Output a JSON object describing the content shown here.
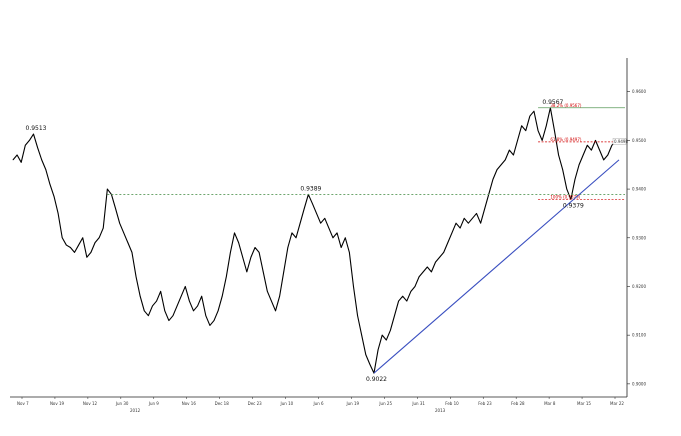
{
  "chart_data": {
    "type": "line",
    "title": "",
    "xlabel": "",
    "ylabel": "",
    "ylim": [
      0.8973,
      0.9661
    ],
    "x_tick_labels": [
      "Nov 7",
      "Nov 19",
      "Nov 12",
      "Jun 30",
      "Jun 9",
      "Nov 16",
      "Dec 18",
      "Dec 23",
      "Jun 10",
      "Jun 6",
      "Jun 19",
      "Jun 25",
      "Jun 31",
      "Feb 10",
      "Feb 23",
      "Feb 28",
      "Mar 8",
      "Mar 15",
      "Mar 22"
    ],
    "x_year_labels": [
      "2012",
      "2013"
    ],
    "y_tick_labels": [
      "0.9600",
      "0.9500",
      "0.9400",
      "0.9300",
      "0.9200",
      "0.9100",
      "0.9000"
    ],
    "current_price_label": "0.9498",
    "annotations": [
      "0.9513",
      "0.9389",
      "0.9022",
      "0.9567",
      "0.9379"
    ],
    "fib_levels": [
      {
        "label": "38.2% (0.9567)",
        "value": 0.9567
      },
      {
        "label": "61.8% (0.9497)",
        "value": 0.9497
      },
      {
        "label": "100% (0.9379)",
        "value": 0.9379
      }
    ],
    "horizontal_line": 0.9389,
    "trendline": {
      "from": [
        34,
        0.9022
      ],
      "to": [
        65,
        0.946
      ]
    },
    "series": [
      {
        "values": [
          0.946,
          0.947,
          0.9455,
          0.949,
          0.95,
          0.9513,
          0.9485,
          0.946,
          0.944,
          0.941,
          0.9385,
          0.935,
          0.93,
          0.9285,
          0.928,
          0.927,
          0.9285,
          0.93,
          0.926,
          0.927,
          0.929,
          0.93,
          0.932,
          0.94,
          0.9389,
          0.936,
          0.933,
          0.931,
          0.929,
          0.927,
          0.922,
          0.918,
          0.915,
          0.914,
          0.916,
          0.917,
          0.919,
          0.915,
          0.913,
          0.914,
          0.916,
          0.918,
          0.92,
          0.917,
          0.915,
          0.916,
          0.918,
          0.914,
          0.912,
          0.913,
          0.915,
          0.918,
          0.922,
          0.927,
          0.931,
          0.929,
          0.926,
          0.923,
          0.926,
          0.928,
          0.927,
          0.923,
          0.919,
          0.917,
          0.915,
          0.918,
          0.923,
          0.928,
          0.931,
          0.93,
          0.933,
          0.936,
          0.9389,
          0.937,
          0.935,
          0.933,
          0.934,
          0.932,
          0.93,
          0.931,
          0.928,
          0.93,
          0.927,
          0.92,
          0.914,
          0.91,
          0.906,
          0.904,
          0.9022,
          0.907,
          0.91,
          0.909,
          0.911,
          0.914,
          0.917,
          0.918,
          0.917,
          0.919,
          0.92,
          0.922,
          0.923,
          0.924,
          0.923,
          0.925,
          0.926,
          0.927,
          0.929,
          0.931,
          0.933,
          0.932,
          0.934,
          0.933,
          0.934,
          0.935,
          0.933,
          0.936,
          0.939,
          0.942,
          0.944,
          0.945,
          0.946,
          0.948,
          0.947,
          0.95,
          0.953,
          0.952,
          0.955,
          0.956,
          0.952,
          0.95,
          0.953,
          0.9567,
          0.952,
          0.947,
          0.944,
          0.94,
          0.9379,
          0.942,
          0.945,
          0.947,
          0.949,
          0.948,
          0.95,
          0.948,
          0.946,
          0.947,
          0.949,
          0.9498
        ]
      }
    ]
  }
}
